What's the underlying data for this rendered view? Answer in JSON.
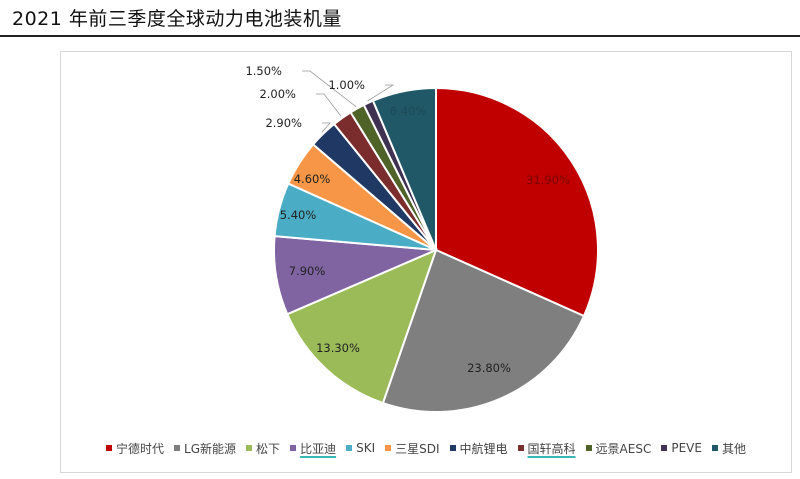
{
  "title": "2021 年前三季度全球动力电池装机量",
  "chart_data": {
    "type": "pie",
    "title": "2021 年前三季度全球动力电池装机量",
    "slices": [
      {
        "name": "宁德时代",
        "value": 31.9,
        "label": "31.90%",
        "color": "#C00000"
      },
      {
        "name": "LG新能源",
        "value": 23.8,
        "label": "23.80%",
        "color": "#7F7F7F"
      },
      {
        "name": "松下",
        "value": 13.3,
        "label": "13.30%",
        "color": "#9BBB59"
      },
      {
        "name": "比亚迪",
        "value": 7.9,
        "label": "7.90%",
        "color": "#8064A2"
      },
      {
        "name": "SKI",
        "value": 5.4,
        "label": "5.40%",
        "color": "#4BACC6"
      },
      {
        "name": "三星SDI",
        "value": 4.6,
        "label": "4.60%",
        "color": "#F79646"
      },
      {
        "name": "中航锂电",
        "value": 2.9,
        "label": "2.90%",
        "color": "#1F3864"
      },
      {
        "name": "国轩高科",
        "value": 2.0,
        "label": "2.00%",
        "color": "#7B2C2C"
      },
      {
        "name": "远景AESC",
        "value": 1.5,
        "label": "1.50%",
        "color": "#4F6228"
      },
      {
        "name": "PEVE",
        "value": 1.0,
        "label": "1.00%",
        "color": "#3F3151"
      },
      {
        "name": "其他",
        "value": 6.4,
        "label": "6.40%",
        "color": "#215868"
      }
    ],
    "legend_position": "bottom",
    "underlined_legend_entries": [
      "比亚迪",
      "国轩高科"
    ]
  }
}
